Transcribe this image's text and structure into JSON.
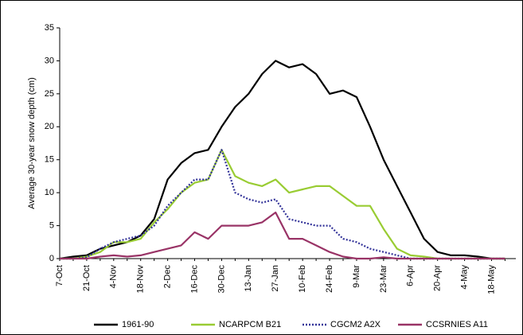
{
  "chart_data": {
    "type": "line",
    "y_label": "Average 30-year snow depth (cm)",
    "categories": [
      "7-Oct",
      null,
      "21-Oct",
      null,
      "4-Nov",
      null,
      "18-Nov",
      null,
      "2-Dec",
      null,
      "16-Dec",
      null,
      "30-Dec",
      null,
      "13-Jan",
      null,
      "27-Jan",
      null,
      "10-Feb",
      null,
      "24-Feb",
      null,
      "9-Mar",
      null,
      "23-Mar",
      null,
      "6-Apr",
      null,
      "20-Apr",
      null,
      "4-May",
      null,
      "18-May",
      null
    ],
    "series": [
      {
        "name": "1961-90",
        "color": "#000000",
        "dash": "none",
        "values": [
          0,
          0.3,
          0.5,
          1.5,
          2,
          2.5,
          3.5,
          6,
          12,
          14.5,
          16,
          16.5,
          20,
          23,
          25,
          28,
          30,
          29,
          29.5,
          28,
          25,
          25.5,
          24.5,
          20,
          15,
          11,
          7,
          3,
          1,
          0.5,
          0.5,
          0.3,
          0,
          0
        ]
      },
      {
        "name": "NCARPCM B21",
        "color": "#99cc33",
        "dash": "none",
        "values": [
          0,
          0,
          0.3,
          1,
          2.5,
          2.5,
          3,
          5.5,
          7.5,
          10,
          11.5,
          12,
          16.5,
          12.5,
          11.5,
          11,
          12,
          10,
          10.5,
          11,
          11,
          9.5,
          8,
          8,
          4.5,
          1.5,
          0.5,
          0.3,
          0,
          0,
          0,
          0,
          0,
          0
        ]
      },
      {
        "name": "CGCM2 A2X",
        "color": "#333399",
        "dash": "2,2",
        "values": [
          0,
          0,
          0.2,
          1.5,
          2.5,
          3,
          3.5,
          5,
          8,
          10,
          12,
          12,
          16.5,
          10,
          9,
          8.5,
          9,
          6,
          5.5,
          5,
          5,
          3,
          2.5,
          1.5,
          1,
          0.5,
          0,
          0,
          0,
          0,
          0,
          0,
          0,
          0
        ]
      },
      {
        "name": "CCSRNIES A11",
        "color": "#993366",
        "dash": "none",
        "values": [
          0,
          0,
          0,
          0.3,
          0.5,
          0.3,
          0.5,
          1,
          1.5,
          2,
          4,
          3,
          5,
          5,
          5,
          5.5,
          7,
          3,
          3,
          2,
          1,
          0.3,
          0,
          0,
          0.2,
          0,
          0,
          0,
          0,
          0,
          0,
          0,
          0,
          0
        ]
      }
    ],
    "ylim": [
      0,
      35
    ],
    "yticks": [
      0,
      5,
      10,
      15,
      20,
      25,
      30,
      35
    ],
    "grid": false,
    "legend": "bottom"
  }
}
